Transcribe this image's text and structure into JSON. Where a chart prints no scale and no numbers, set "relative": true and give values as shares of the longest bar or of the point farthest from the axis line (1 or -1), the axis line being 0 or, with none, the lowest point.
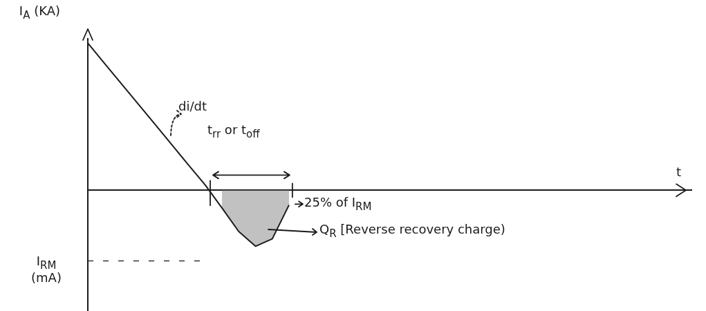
{
  "chart_data": {
    "type": "line",
    "relative": true,
    "grid": false,
    "legend": false,
    "marker": "none",
    "xlabel": "t",
    "ylabel": "I$_{A}$ (KA)",
    "categories": [
      null,
      null,
      null,
      null,
      null,
      null,
      null,
      null,
      null,
      null,
      null,
      null,
      null,
      null,
      null,
      null,
      null,
      null,
      null,
      null,
      null,
      null,
      null,
      null,
      null,
      null,
      null,
      null,
      null,
      null,
      null,
      null,
      null,
      null,
      null,
      null,
      null
    ],
    "series": [
      {
        "color": "#1a1a1a",
        "values": [
          1,
          0.862,
          0.724,
          0.587,
          0.449,
          0.311,
          0.173,
          0.036,
          -0.12,
          -0.28,
          -0.38,
          -0.33,
          -0.1,
          null,
          null,
          null,
          null,
          null,
          null,
          null,
          null,
          null,
          null,
          null,
          null,
          null,
          null,
          null,
          null,
          null,
          null,
          null,
          null,
          null,
          null,
          null,
          null
        ]
      },
      {
        "type": "area",
        "color": "#8a8a8a",
        "values": [
          null,
          null,
          null,
          null,
          null,
          null,
          null,
          null,
          -0.12,
          -0.28,
          -0.38,
          -0.33,
          -0.1,
          null,
          null,
          null,
          null,
          null,
          null,
          null,
          null,
          null,
          null,
          null,
          null,
          null,
          null,
          null,
          null,
          null,
          null,
          null,
          null,
          null,
          null,
          null,
          null
        ]
      }
    ],
    "ref_lines": [
      {
        "axis": "y",
        "value": -0.48,
        "label": "I$_{RM}$ (mA)",
        "line_style": "dashed"
      }
    ],
    "annotations": [
      "di/dt",
      "t$_{rr}$ or t$_{off}$",
      "25% of I$_{RM}$",
      "Q$_{R}$ [Reverse recovery charge)"
    ]
  }
}
